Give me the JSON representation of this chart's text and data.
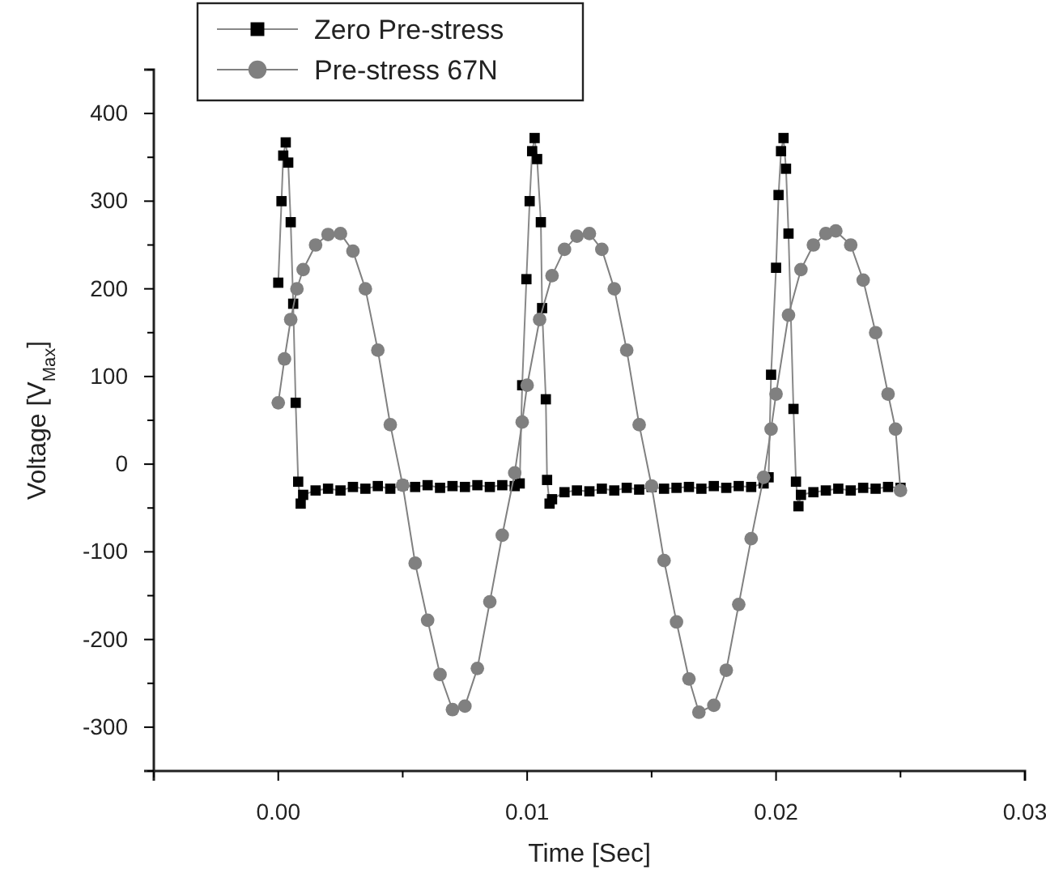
{
  "chart_data": {
    "type": "line",
    "xlabel": "Time [Sec]",
    "ylabel": "Voltage [V$_{Max}$]",
    "xlim": [
      -0.005,
      0.03
    ],
    "xticks": [
      {
        "value": -0.005,
        "label": null
      },
      {
        "value": 0,
        "label": "0.00"
      },
      {
        "value": 0.005,
        "label": null
      },
      {
        "value": 0.01,
        "label": "0.01"
      },
      {
        "value": 0.015,
        "label": null
      },
      {
        "value": 0.02,
        "label": "0.02"
      },
      {
        "value": 0.025,
        "label": null
      },
      {
        "value": 0.03,
        "label": "0.03"
      }
    ],
    "ylim": [
      -350,
      450
    ],
    "yticks": [
      {
        "value": -350,
        "label": null
      },
      -300,
      {
        "value": -250,
        "label": null
      },
      -200,
      {
        "value": -150,
        "label": null
      },
      -100,
      {
        "value": -50,
        "label": null
      },
      0,
      {
        "value": 50,
        "label": null
      },
      100,
      {
        "value": 150,
        "label": null
      },
      200,
      {
        "value": 250,
        "label": null
      },
      300,
      {
        "value": 350,
        "label": null
      },
      400,
      {
        "value": 450,
        "label": null
      }
    ],
    "grid": false,
    "legend": "top left",
    "line_style": "solid",
    "series": [
      {
        "name": "Zero Pre-stress",
        "color": "#000000",
        "marker": "square",
        "x": [
          0,
          0.00013,
          0.0002,
          0.0003,
          0.0004,
          0.0005,
          0.0006,
          0.0007,
          0.0008,
          0.0009,
          0.001,
          0.0015,
          0.002,
          0.0025,
          0.003,
          0.0035,
          0.004,
          0.0045,
          0.005,
          0.0055,
          0.006,
          0.0065,
          0.007,
          0.0075,
          0.008,
          0.0085,
          0.009,
          0.0095,
          0.0097,
          0.0098,
          0.00997,
          0.0101,
          0.0102,
          0.0103,
          0.0104,
          0.01055,
          0.0106,
          0.01075,
          0.0108,
          0.0109,
          0.011,
          0.0115,
          0.012,
          0.0125,
          0.013,
          0.0135,
          0.014,
          0.0145,
          0.015,
          0.0155,
          0.016,
          0.0165,
          0.017,
          0.0175,
          0.018,
          0.0185,
          0.019,
          0.0195,
          0.0197,
          0.0198,
          0.02,
          0.0201,
          0.0202,
          0.0203,
          0.0204,
          0.0205,
          0.0207,
          0.0208,
          0.0209,
          0.021,
          0.0215,
          0.022,
          0.0225,
          0.023,
          0.0235,
          0.024,
          0.0245,
          0.025
        ],
        "values": [
          207,
          300,
          352,
          367,
          344,
          276,
          183,
          70,
          -20,
          -45,
          -35,
          -30,
          -28,
          -30,
          -26,
          -28,
          -25,
          -28,
          -24,
          -26,
          -24,
          -27,
          -25,
          -26,
          -24,
          -26,
          -24,
          -25,
          -22,
          90,
          211,
          300,
          357,
          372,
          348,
          276,
          178,
          74,
          -18,
          -45,
          -40,
          -32,
          -30,
          -31,
          -28,
          -30,
          -27,
          -29,
          -26,
          -28,
          -27,
          -26,
          -28,
          -25,
          -27,
          -25,
          -26,
          -22,
          -15,
          102,
          224,
          307,
          357,
          372,
          337,
          263,
          63,
          -20,
          -48,
          -35,
          -32,
          -30,
          -28,
          -30,
          -27,
          -28,
          -26,
          -27
        ]
      },
      {
        "name": "Pre-stress 67N",
        "color": "#808080",
        "marker": "circle",
        "x": [
          0,
          0.00025,
          0.0005,
          0.00075,
          0.001,
          0.0015,
          0.002,
          0.0025,
          0.003,
          0.0035,
          0.004,
          0.0045,
          0.005,
          0.0055,
          0.006,
          0.0065,
          0.007,
          0.0075,
          0.008,
          0.0085,
          0.009,
          0.0095,
          0.0098,
          0.01,
          0.0105,
          0.011,
          0.0115,
          0.012,
          0.0125,
          0.013,
          0.0135,
          0.014,
          0.0145,
          0.015,
          0.0155,
          0.016,
          0.0165,
          0.0169,
          0.0175,
          0.018,
          0.0185,
          0.019,
          0.0195,
          0.0198,
          0.02,
          0.0205,
          0.021,
          0.0215,
          0.022,
          0.0224,
          0.023,
          0.0235,
          0.024,
          0.0245,
          0.0248,
          0.025
        ],
        "values": [
          70,
          120,
          165,
          200,
          222,
          250,
          262,
          263,
          243,
          200,
          130,
          45,
          -24,
          -113,
          -178,
          -240,
          -280,
          -276,
          -233,
          -157,
          -81,
          -10,
          48,
          90,
          165,
          215,
          245,
          260,
          263,
          245,
          200,
          130,
          45,
          -25,
          -110,
          -180,
          -245,
          -283,
          -275,
          -235,
          -160,
          -85,
          -15,
          40,
          80,
          170,
          222,
          250,
          263,
          266,
          250,
          210,
          150,
          80,
          40,
          -30
        ]
      }
    ]
  }
}
